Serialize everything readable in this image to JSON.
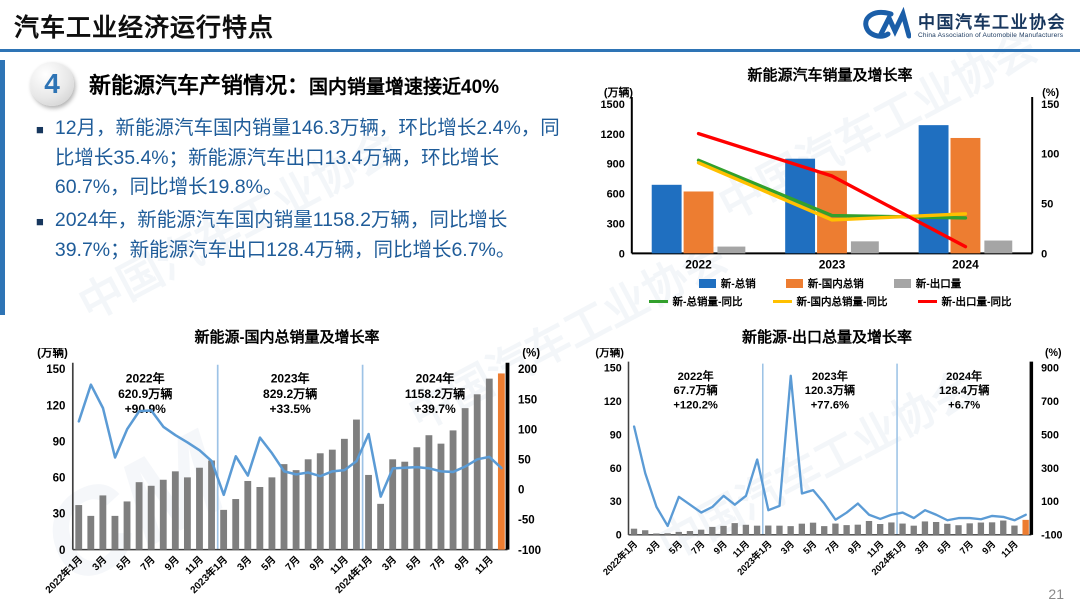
{
  "page_number": "21",
  "watermark": "中国汽车工业协会",
  "header": {
    "title": "汽车工业经济运行特点",
    "logo": {
      "mark": "CM",
      "org_cn": "中国汽车工业协会",
      "org_en": "China Association of Automobile Manufacturers"
    }
  },
  "section": {
    "number": "4",
    "heading": "新能源汽车产销情况：",
    "subheading": "国内销量增速接近40%"
  },
  "bullets": [
    "12月，新能源汽车国内销量146.3万辆，环比增长2.4%，同比增长35.4%；新能源汽车出口13.4万辆，环比增长60.7%，同比增长19.8%。",
    "2024年，新能源汽车国内销量1158.2万辆，同比增长39.7%；新能源汽车出口128.4万辆，同比增长6.7%。"
  ],
  "colors": {
    "accent_blue": "#2E74B5",
    "text_blue": "#1F5C99",
    "bullet_navy": "#17375E",
    "bar_blue": "#1F6FC0",
    "bar_orange": "#ED7D31",
    "bar_gray": "#A5A5A5",
    "monthly_bar_gray": "#7F7F7F",
    "line_green": "#33A02C",
    "line_yellow": "#FFC000",
    "line_red": "#FF0000",
    "line_blue": "#5B9BD5",
    "year_divider": "#9DC3E6"
  },
  "chart_data": [
    {
      "id": "sales-growth",
      "type": "bar",
      "title": "新能源汽车销量及增长率",
      "left_axis": {
        "label": "(万辆)",
        "ticks": [
          0,
          300,
          600,
          900,
          1200,
          1500
        ],
        "lim": [
          0,
          1500
        ]
      },
      "right_axis": {
        "label": "(%)",
        "ticks": [
          0,
          50,
          100,
          150
        ],
        "lim": [
          0,
          150
        ]
      },
      "categories": [
        "2022",
        "2023",
        "2024"
      ],
      "bar_series": [
        {
          "name": "新-总销",
          "color": "#1F6FC0",
          "values": [
            688,
            950,
            1287
          ]
        },
        {
          "name": "新-国内总销",
          "color": "#ED7D31",
          "values": [
            620.9,
            829.2,
            1158.2
          ]
        },
        {
          "name": "新-出口量",
          "color": "#A5A5A5",
          "values": [
            67.7,
            120.3,
            128.4
          ]
        }
      ],
      "line_series": [
        {
          "name": "新-总销量-同比",
          "color": "#33A02C",
          "values": [
            93.4,
            37.9,
            35.5
          ]
        },
        {
          "name": "新-国内总销量-同比",
          "color": "#FFC000",
          "values": [
            90.9,
            33.5,
            39.7
          ]
        },
        {
          "name": "新-出口量-同比",
          "color": "#FF0000",
          "values": [
            120.2,
            77.6,
            6.7
          ]
        }
      ],
      "legend_position": "bottom"
    },
    {
      "id": "domestic-monthly",
      "type": "bar",
      "title": "新能源-国内总销量及增长率",
      "left_axis": {
        "label": "(万辆)",
        "ticks": [
          0,
          30,
          60,
          90,
          120,
          150
        ],
        "lim": [
          0,
          150
        ]
      },
      "right_axis": {
        "label": "(%)",
        "ticks": [
          -100,
          -50,
          0,
          50,
          100,
          150,
          200
        ],
        "lim": [
          -100,
          200
        ]
      },
      "x_tick_labels": [
        "2022年1月",
        "3月",
        "5月",
        "7月",
        "9月",
        "11月",
        "2023年1月",
        "3月",
        "5月",
        "7月",
        "9月",
        "11月",
        "2024年1月",
        "3月",
        "5月",
        "7月",
        "9月",
        "11月"
      ],
      "annotations": [
        {
          "lines": [
            "2022年",
            "620.9万辆",
            "+90.9%"
          ]
        },
        {
          "lines": [
            "2023年",
            "829.2万辆",
            "+33.5%"
          ]
        },
        {
          "lines": [
            "2024年",
            "1158.2万辆",
            "+39.7%"
          ]
        }
      ],
      "dividers": [
        12,
        24
      ],
      "bar_color": "#7F7F7F",
      "last_bar_color": "#ED7D31",
      "line_color": "#5B9BD5",
      "bar_values": [
        37,
        28,
        45,
        28,
        40,
        56,
        53,
        58,
        65,
        60,
        68,
        74,
        33,
        42,
        57,
        52,
        60,
        71,
        66,
        75,
        80,
        83,
        92,
        108,
        62,
        38,
        75,
        73,
        85,
        95,
        88,
        99,
        117.5,
        129,
        142,
        146.3
      ],
      "line_values": [
        113,
        174,
        135,
        53,
        100,
        130,
        131,
        104,
        90,
        78,
        65,
        47,
        -9,
        55,
        23,
        86,
        60,
        30,
        25,
        28,
        22,
        30,
        32,
        47,
        92,
        -12,
        35,
        36,
        37,
        35,
        30,
        29,
        38,
        50,
        54,
        35.4
      ]
    },
    {
      "id": "export-monthly",
      "type": "bar",
      "title": "新能源-出口总量及增长率",
      "left_axis": {
        "label": "(万辆)",
        "ticks": [
          0,
          30,
          60,
          90,
          120,
          150
        ],
        "lim": [
          0,
          150
        ]
      },
      "right_axis": {
        "label": "(%)",
        "ticks": [
          -100,
          100,
          300,
          500,
          700,
          900
        ],
        "lim": [
          -100,
          900
        ]
      },
      "x_tick_labels": [
        "2022年1月",
        "3月",
        "5月",
        "7月",
        "9月",
        "11月",
        "2023年1月",
        "3月",
        "5月",
        "7月",
        "9月",
        "11月",
        "2024年1月",
        "3月",
        "5月",
        "7月",
        "9月",
        "11月"
      ],
      "annotations": [
        {
          "lines": [
            "2022年",
            "67.7万辆",
            "+120.2%"
          ]
        },
        {
          "lines": [
            "2023年",
            "120.3万辆",
            "+77.6%"
          ]
        },
        {
          "lines": [
            "2024年",
            "128.4万辆",
            "+6.7%"
          ]
        }
      ],
      "dividers": [
        12,
        24
      ],
      "bar_color": "#7F7F7F",
      "last_bar_color": "#ED7D31",
      "line_color": "#5B9BD5",
      "bar_values": [
        5.5,
        4.1,
        1.2,
        1.4,
        2.6,
        3.4,
        4.6,
        7.1,
        8.0,
        10.5,
        9.0,
        8.2,
        8.3,
        8.2,
        7.8,
        10.0,
        10.9,
        7.8,
        10.1,
        8.7,
        9.1,
        12.4,
        9.7,
        11.1,
        10.1,
        8.2,
        12.0,
        11.5,
        9.9,
        8.6,
        10.3,
        11.0,
        11.2,
        12.8,
        8.3,
        13.4
      ],
      "line_values": [
        547,
        267,
        67,
        -47,
        127,
        80,
        33,
        67,
        133,
        80,
        133,
        350,
        47,
        73,
        850,
        147,
        167,
        87,
        -10,
        33,
        87,
        20,
        -5,
        20,
        33,
        0,
        47,
        20,
        -13,
        0,
        0,
        -7,
        13,
        7,
        -13,
        19.8
      ]
    }
  ]
}
